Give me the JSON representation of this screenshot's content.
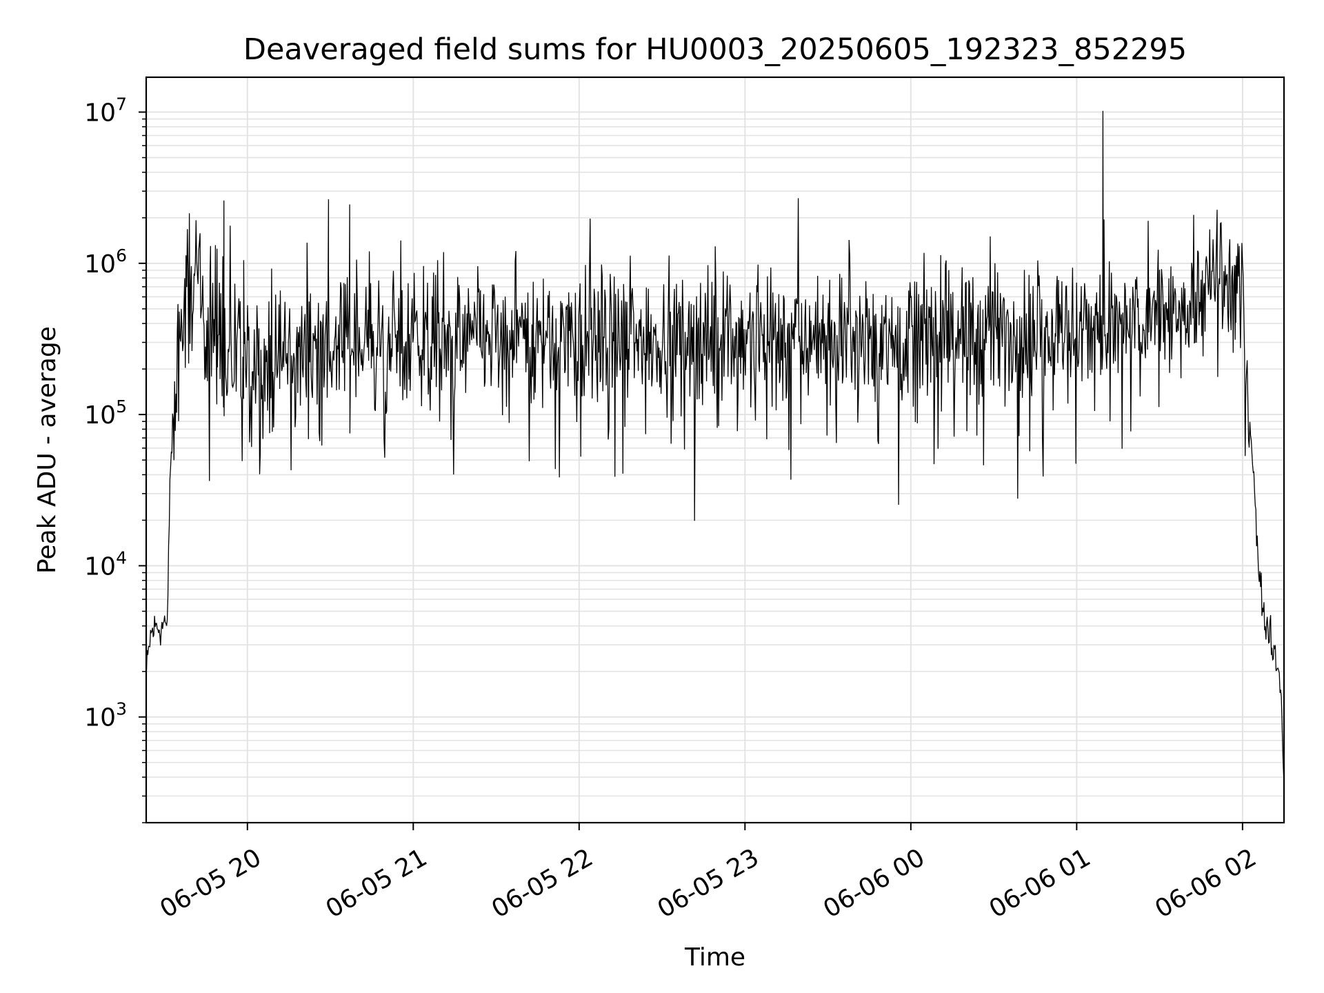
{
  "chart_data": {
    "type": "line",
    "title": "Deaveraged field sums for HU0003_20250605_192323_852295",
    "xlabel": "Time",
    "ylabel": "Peak ADU - average",
    "yscale": "log",
    "grid": true,
    "xlim": [
      "2025-06-05 19:23:23",
      "2025-06-06 02:15:00"
    ],
    "ylim": [
      200,
      17000000
    ],
    "x_ticks": [
      {
        "x": "2025-06-05 20:00",
        "label": "06-05 20"
      },
      {
        "x": "2025-06-05 21:00",
        "label": "06-05 21"
      },
      {
        "x": "2025-06-05 22:00",
        "label": "06-05 22"
      },
      {
        "x": "2025-06-05 23:00",
        "label": "06-05 23"
      },
      {
        "x": "2025-06-06 00:00",
        "label": "06-06 00"
      },
      {
        "x": "2025-06-06 01:00",
        "label": "06-06 01"
      },
      {
        "x": "2025-06-06 02:00",
        "label": "06-06 02"
      }
    ],
    "y_ticks": [
      {
        "y": 1000,
        "base": "10",
        "exp": "3"
      },
      {
        "y": 10000,
        "base": "10",
        "exp": "4"
      },
      {
        "y": 100000,
        "base": "10",
        "exp": "5"
      },
      {
        "y": 1000000,
        "base": "10",
        "exp": "6"
      },
      {
        "y": 10000000,
        "base": "10",
        "exp": "7"
      }
    ],
    "line_color": "#000000",
    "series": [
      {
        "x": [
          "2025-06-05 19:23:30",
          "2025-06-05 19:25:00",
          "2025-06-05 19:27:00",
          "2025-06-05 19:29:00",
          "2025-06-05 19:30:00",
          "2025-06-05 19:31:00",
          "2025-06-05 19:32:00",
          "2025-06-05 19:34:00",
          "2025-06-05 19:36:00",
          "2025-06-05 19:38:00",
          "2025-06-05 19:40:00",
          "2025-06-05 19:42:00",
          "2025-06-05 19:45:00",
          "2025-06-05 19:48:00",
          "2025-06-05 19:50:00",
          "2025-06-05 19:52:00",
          "2025-06-05 19:55:00",
          "2025-06-05 19:58:00",
          "2025-06-05 20:00:00",
          "2025-06-05 20:05:00",
          "2025-06-05 20:10:00",
          "2025-06-05 20:15:00",
          "2025-06-05 20:20:00",
          "2025-06-05 20:25:00",
          "2025-06-05 20:30:00",
          "2025-06-05 20:35:00",
          "2025-06-05 20:40:00",
          "2025-06-05 20:50:00",
          "2025-06-05 21:00:00",
          "2025-06-05 21:15:00",
          "2025-06-05 21:30:00",
          "2025-06-05 21:45:00",
          "2025-06-05 22:00:00",
          "2025-06-05 22:15:00",
          "2025-06-05 22:30:00",
          "2025-06-05 22:45:00",
          "2025-06-05 23:00:00",
          "2025-06-05 23:15:00",
          "2025-06-05 23:30:00",
          "2025-06-05 23:45:00",
          "2025-06-06 00:00:00",
          "2025-06-06 00:15:00",
          "2025-06-06 00:30:00",
          "2025-06-06 00:45:00",
          "2025-06-06 01:00:00",
          "2025-06-06 01:10:00",
          "2025-06-06 01:20:00",
          "2025-06-06 01:30:00",
          "2025-06-06 01:40:00",
          "2025-06-06 01:45:00",
          "2025-06-06 01:50:00",
          "2025-06-06 01:55:00",
          "2025-06-06 01:58:00",
          "2025-06-06 02:00:00",
          "2025-06-06 02:02:00",
          "2025-06-06 02:04:00",
          "2025-06-06 02:06:00",
          "2025-06-06 02:08:00",
          "2025-06-06 02:10:00",
          "2025-06-06 02:12:00",
          "2025-06-06 02:14:00",
          "2025-06-06 02:15:00"
        ],
        "y": [
          2000,
          3500,
          4000,
          3800,
          4500,
          3500,
          40000,
          150000,
          300000,
          800000,
          750000,
          600000,
          450000,
          350000,
          300000,
          250000,
          220000,
          200000,
          200000,
          210000,
          220000,
          240000,
          250000,
          260000,
          270000,
          290000,
          300000,
          310000,
          320000,
          320000,
          320000,
          330000,
          330000,
          330000,
          330000,
          330000,
          330000,
          330000,
          330000,
          330000,
          340000,
          340000,
          350000,
          350000,
          370000,
          380000,
          400000,
          450000,
          550000,
          650000,
          700000,
          700000,
          650000,
          500000,
          150000,
          40000,
          8000,
          4500,
          3500,
          2500,
          1500,
          350
        ]
      }
    ],
    "spikes": [
      {
        "x": "2025-06-05 19:46:40",
        "y": 1300000
      },
      {
        "x": "2025-06-05 19:49:00",
        "y": 1250000
      },
      {
        "x": "2025-06-05 19:51:30",
        "y": 2600000
      },
      {
        "x": "2025-06-05 19:58:40",
        "y": 1050000
      },
      {
        "x": "2025-06-05 20:29:20",
        "y": 2650000
      },
      {
        "x": "2025-06-05 20:37:00",
        "y": 2450000
      },
      {
        "x": "2025-06-06 01:09:30",
        "y": 10200000
      },
      {
        "x": "2025-06-06 01:57:30",
        "y": 970000
      }
    ]
  }
}
